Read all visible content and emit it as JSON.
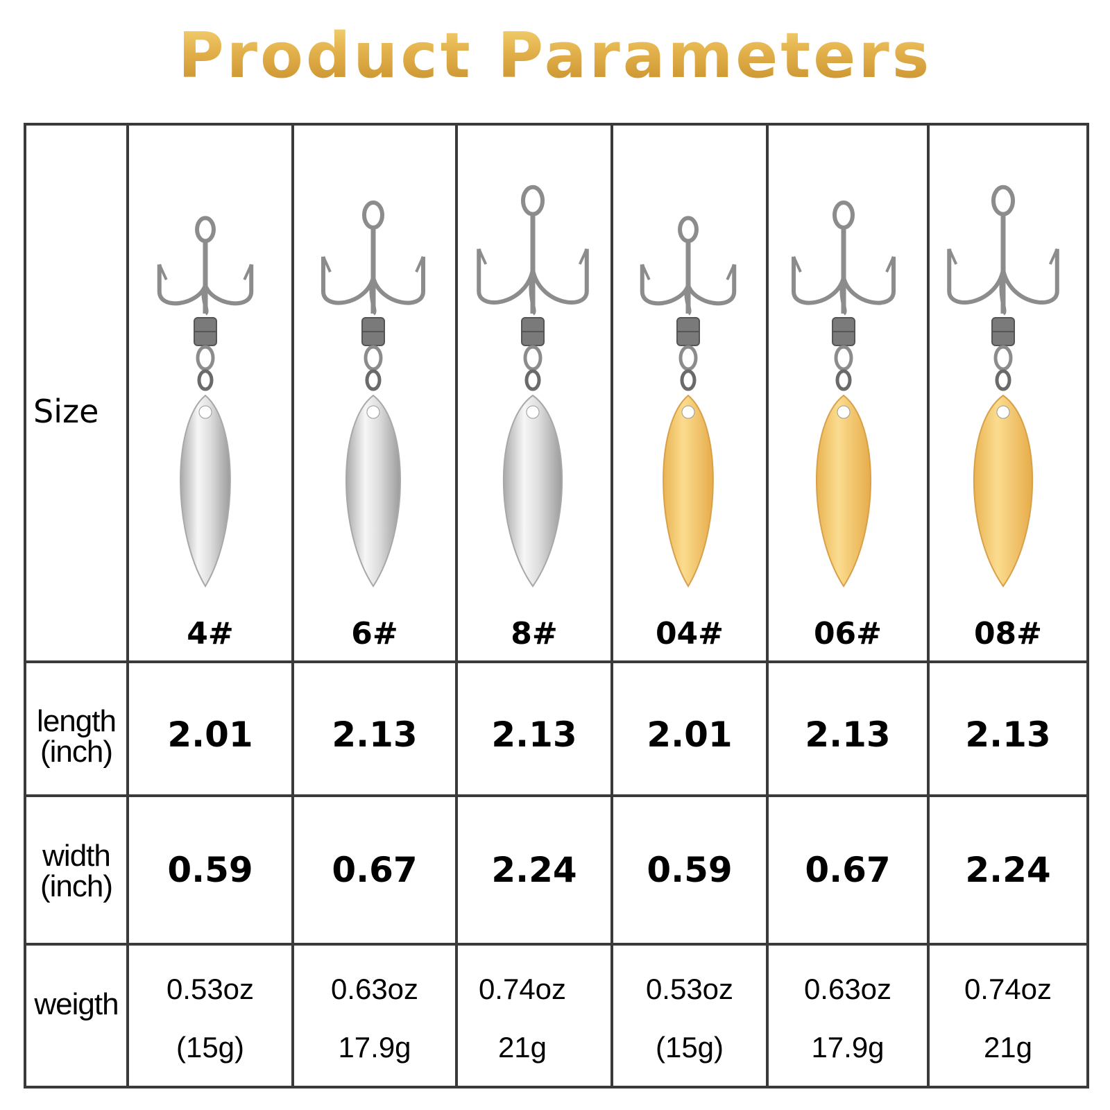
{
  "title": "Product Parameters",
  "colors": {
    "title_gold": "#d9a640",
    "grid": "#3a3a3a",
    "silver": "#dcdcdc",
    "gold_blade": "#f0c26a"
  },
  "row_labels": {
    "size": "Size",
    "length": [
      "length",
      "(inch)"
    ],
    "width": [
      "width",
      "(inch)"
    ],
    "weight": "weigth"
  },
  "products": [
    {
      "size": "4#",
      "length": "2.01",
      "width": "0.59",
      "weight_oz": "0.53oz",
      "weight_g": "(15g)",
      "blade": "silver"
    },
    {
      "size": "6#",
      "length": "2.13",
      "width": "0.67",
      "weight_oz": "0.63oz",
      "weight_g": "17.9g",
      "blade": "silver"
    },
    {
      "size": "8#",
      "length": "2.13",
      "width": "2.24",
      "weight_oz": "0.74oz",
      "weight_g": "21g",
      "blade": "silver"
    },
    {
      "size": "04#",
      "length": "2.01",
      "width": "0.59",
      "weight_oz": "0.53oz",
      "weight_g": "(15g)",
      "blade": "gold"
    },
    {
      "size": "06#",
      "length": "2.13",
      "width": "0.67",
      "weight_oz": "0.63oz",
      "weight_g": "17.9g",
      "blade": "gold"
    },
    {
      "size": "08#",
      "length": "2.13",
      "width": "2.24",
      "weight_oz": "0.74oz",
      "weight_g": "21g",
      "blade": "gold"
    }
  ]
}
